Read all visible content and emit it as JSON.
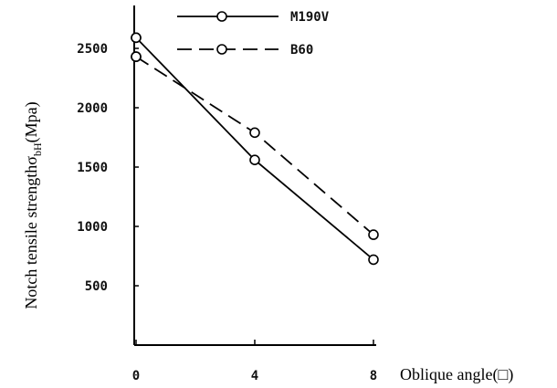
{
  "chart_data": {
    "type": "line",
    "title": "",
    "xlabel": "Oblique angle(□)",
    "ylabel_main": "Notch tensile strengthσ",
    "ylabel_sub": "bH",
    "ylabel_unit": "(Mpa)",
    "x_ticks": [
      "0",
      "4",
      "8"
    ],
    "y_ticks": [
      "500",
      "1000",
      "1500",
      "2000",
      "2500"
    ],
    "xlim": [
      0,
      10
    ],
    "ylim": [
      0,
      3020
    ],
    "grid": false,
    "legend_position": "top",
    "series": [
      {
        "name": "M190V",
        "style": "solid",
        "x": [
          0,
          0,
          4,
          8
        ],
        "y": [
          2590,
          2590,
          1560,
          720
        ]
      },
      {
        "name": "B60",
        "style": "dashed",
        "x": [
          0,
          0,
          4,
          8
        ],
        "y": [
          2430,
          2430,
          1790,
          930
        ]
      }
    ]
  }
}
